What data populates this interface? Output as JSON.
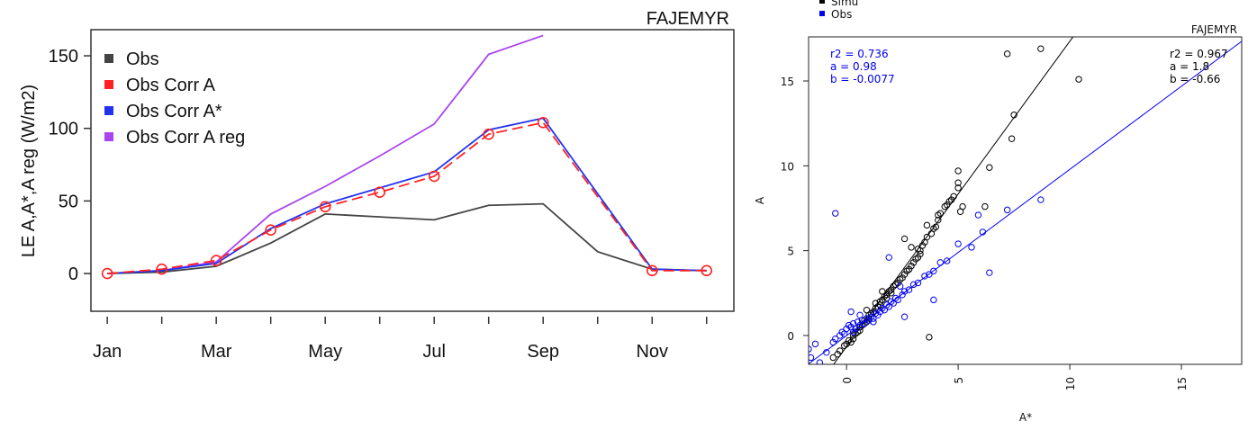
{
  "chart_data": [
    {
      "type": "line",
      "title": "FAJEMYR",
      "xlabel": "",
      "ylabel": "LE A,A*,A reg (W/m2)",
      "x": [
        1,
        2,
        3,
        4,
        5,
        6,
        7,
        8,
        9,
        10,
        11,
        12
      ],
      "x_tick_labels": [
        {
          "x": 1,
          "label": "Jan"
        },
        {
          "x": 3,
          "label": "Mar"
        },
        {
          "x": 5,
          "label": "May"
        },
        {
          "x": 7,
          "label": "Jul"
        },
        {
          "x": 9,
          "label": "Sep"
        },
        {
          "x": 11,
          "label": "Nov"
        }
      ],
      "y_ticks": [
        0,
        50,
        100,
        150
      ],
      "xlim": [
        0.7,
        12.5
      ],
      "ylim": [
        -26,
        168
      ],
      "legend_position": "top-left",
      "series": [
        {
          "name": "Obs",
          "color": "#444444",
          "marker": "none",
          "dash": "none",
          "values": [
            0,
            1,
            5,
            21,
            41,
            39,
            37,
            47,
            48,
            15,
            3,
            2
          ]
        },
        {
          "name": "Obs Corr A",
          "color": "#ff2222",
          "marker": "circle",
          "dash": "dashed",
          "values": [
            0,
            3,
            9,
            30,
            46,
            56,
            67,
            96,
            104,
            null,
            2,
            2
          ]
        },
        {
          "name": "Obs Corr A*",
          "color": "#2233ee",
          "marker": "none",
          "dash": "none",
          "values": [
            0,
            2,
            7,
            31,
            48,
            59,
            70,
            99,
            107,
            null,
            3,
            2
          ]
        },
        {
          "name": "Obs Corr A reg",
          "color": "#aa44ee",
          "marker": "none",
          "dash": "none",
          "values": [
            0,
            2,
            8,
            41,
            60,
            81,
            103,
            151,
            164,
            null,
            null,
            null
          ]
        }
      ]
    },
    {
      "type": "scatter",
      "title": "FAJEMYR",
      "xlabel": "A*",
      "ylabel": "A",
      "xlim": [
        -1.7,
        17.7
      ],
      "ylim": [
        -1.7,
        17.6
      ],
      "x_ticks": [
        0,
        5,
        10,
        15
      ],
      "y_ticks": [
        0,
        5,
        10,
        15
      ],
      "legend_position": "top-left, outside plot",
      "legend": [
        {
          "name": "Simu",
          "color": "#000000"
        },
        {
          "name": "Obs",
          "color": "#0000ee"
        }
      ],
      "stats": [
        {
          "series": "Obs",
          "color": "#0000ee",
          "position": "top-left",
          "lines": [
            "r2 = 0.736",
            "a = 0.98",
            "b = -0.0077"
          ]
        },
        {
          "series": "Simu",
          "color": "#000000",
          "position": "top-right",
          "lines": [
            "r2 = 0.967",
            "a = 1.8",
            "b = -0.66"
          ]
        }
      ],
      "fit_lines": [
        {
          "series": "Simu",
          "color": "#000000",
          "slope": 1.8,
          "intercept": -0.66
        },
        {
          "series": "Obs",
          "color": "#0000ee",
          "slope": 0.98,
          "intercept": -0.0077
        }
      ],
      "series": [
        {
          "name": "Simu",
          "color": "#000000",
          "points": [
            [
              -0.6,
              -1.3
            ],
            [
              -0.4,
              -1.1
            ],
            [
              -0.3,
              -0.9
            ],
            [
              -0.1,
              -0.6
            ],
            [
              0.0,
              -0.5
            ],
            [
              0.1,
              -0.3
            ],
            [
              0.2,
              -0.4
            ],
            [
              0.3,
              -0.2
            ],
            [
              0.3,
              0.0
            ],
            [
              0.4,
              0.1
            ],
            [
              0.5,
              0.2
            ],
            [
              0.6,
              0.3
            ],
            [
              0.6,
              0.5
            ],
            [
              0.7,
              0.6
            ],
            [
              0.8,
              0.7
            ],
            [
              0.8,
              0.9
            ],
            [
              0.9,
              0.8
            ],
            [
              1.0,
              1.0
            ],
            [
              1.0,
              1.2
            ],
            [
              1.1,
              1.3
            ],
            [
              1.2,
              1.4
            ],
            [
              1.3,
              1.6
            ],
            [
              1.4,
              1.7
            ],
            [
              1.5,
              1.8
            ],
            [
              1.5,
              2.0
            ],
            [
              1.6,
              2.1
            ],
            [
              1.7,
              2.3
            ],
            [
              1.8,
              2.2
            ],
            [
              1.8,
              2.4
            ],
            [
              1.9,
              2.6
            ],
            [
              2.0,
              2.7
            ],
            [
              2.0,
              2.5
            ],
            [
              2.1,
              2.9
            ],
            [
              2.2,
              3.0
            ],
            [
              2.3,
              3.1
            ],
            [
              2.4,
              3.3
            ],
            [
              2.5,
              3.4
            ],
            [
              2.6,
              3.6
            ],
            [
              2.7,
              3.8
            ],
            [
              2.8,
              3.9
            ],
            [
              2.9,
              4.1
            ],
            [
              3.0,
              4.3
            ],
            [
              3.1,
              4.5
            ],
            [
              3.2,
              4.6
            ],
            [
              3.2,
              5.1
            ],
            [
              3.3,
              5.0
            ],
            [
              3.4,
              5.3
            ],
            [
              3.5,
              5.5
            ],
            [
              3.6,
              5.8
            ],
            [
              3.8,
              6.0
            ],
            [
              4.0,
              6.4
            ],
            [
              4.1,
              6.8
            ],
            [
              4.2,
              7.2
            ],
            [
              4.4,
              7.6
            ],
            [
              4.6,
              7.9
            ],
            [
              4.8,
              8.2
            ],
            [
              5.0,
              8.7
            ],
            [
              5.0,
              9.0
            ],
            [
              5.2,
              7.6
            ],
            [
              4.7,
              8.0
            ],
            [
              3.6,
              6.5
            ],
            [
              3.9,
              6.3
            ],
            [
              5.0,
              9.7
            ],
            [
              6.2,
              7.6
            ],
            [
              6.4,
              9.9
            ],
            [
              7.4,
              11.6
            ],
            [
              7.5,
              13.0
            ],
            [
              8.7,
              16.9
            ],
            [
              10.4,
              15.1
            ],
            [
              7.2,
              16.6
            ],
            [
              3.7,
              -0.1
            ],
            [
              2.6,
              5.7
            ],
            [
              4.1,
              7.1
            ],
            [
              3.3,
              4.8
            ],
            [
              2.9,
              5.2
            ],
            [
              5.1,
              7.3
            ],
            [
              4.5,
              7.7
            ],
            [
              1.3,
              1.9
            ],
            [
              0.9,
              1.5
            ],
            [
              1.6,
              2.6
            ]
          ]
        },
        {
          "name": "Obs",
          "color": "#0000ee",
          "points": [
            [
              -1.7,
              -0.8
            ],
            [
              -1.6,
              -1.3
            ],
            [
              -1.4,
              -0.5
            ],
            [
              -1.2,
              -1.6
            ],
            [
              -0.9,
              -1.0
            ],
            [
              -0.6,
              -0.4
            ],
            [
              -0.5,
              -0.2
            ],
            [
              -0.3,
              0.0
            ],
            [
              -0.2,
              0.2
            ],
            [
              0.0,
              0.4
            ],
            [
              0.1,
              0.6
            ],
            [
              0.2,
              0.5
            ],
            [
              0.3,
              0.7
            ],
            [
              0.4,
              0.4
            ],
            [
              0.5,
              0.8
            ],
            [
              0.6,
              0.6
            ],
            [
              0.7,
              0.9
            ],
            [
              0.8,
              0.7
            ],
            [
              0.9,
              1.0
            ],
            [
              1.0,
              0.9
            ],
            [
              1.1,
              1.1
            ],
            [
              1.2,
              1.0
            ],
            [
              1.3,
              1.3
            ],
            [
              1.4,
              1.2
            ],
            [
              1.5,
              1.4
            ],
            [
              1.6,
              1.6
            ],
            [
              1.7,
              1.5
            ],
            [
              1.8,
              1.8
            ],
            [
              1.9,
              1.7
            ],
            [
              2.0,
              2.0
            ],
            [
              2.1,
              1.9
            ],
            [
              2.2,
              2.2
            ],
            [
              2.3,
              2.1
            ],
            [
              2.5,
              2.4
            ],
            [
              2.6,
              2.6
            ],
            [
              2.8,
              2.7
            ],
            [
              3.0,
              3.0
            ],
            [
              3.2,
              3.1
            ],
            [
              3.5,
              3.5
            ],
            [
              3.7,
              3.6
            ],
            [
              3.9,
              3.8
            ],
            [
              4.2,
              4.3
            ],
            [
              4.5,
              4.4
            ],
            [
              5.0,
              5.4
            ],
            [
              5.6,
              5.2
            ],
            [
              6.1,
              6.1
            ],
            [
              5.9,
              7.1
            ],
            [
              7.2,
              7.4
            ],
            [
              8.7,
              8.0
            ],
            [
              6.4,
              3.7
            ],
            [
              -0.5,
              7.2
            ],
            [
              3.9,
              2.1
            ],
            [
              2.6,
              1.1
            ],
            [
              1.9,
              4.6
            ],
            [
              0.2,
              1.4
            ],
            [
              -0.1,
              0.1
            ],
            [
              0.3,
              0.2
            ],
            [
              0.6,
              1.2
            ],
            [
              1.2,
              0.8
            ],
            [
              2.4,
              2.9
            ]
          ]
        }
      ]
    }
  ]
}
